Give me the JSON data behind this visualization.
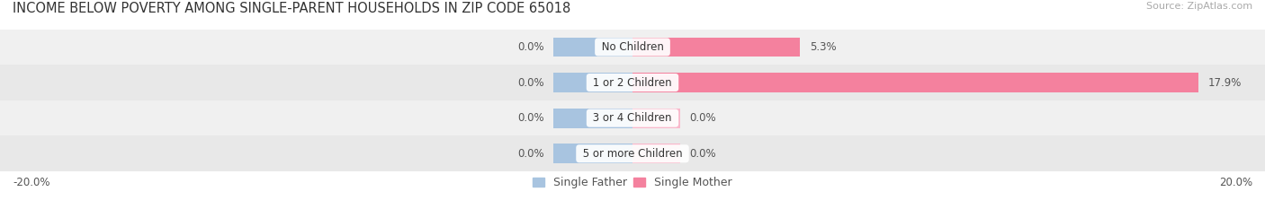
{
  "title": "INCOME BELOW POVERTY AMONG SINGLE-PARENT HOUSEHOLDS IN ZIP CODE 65018",
  "source": "Source: ZipAtlas.com",
  "categories": [
    "No Children",
    "1 or 2 Children",
    "3 or 4 Children",
    "5 or more Children"
  ],
  "single_father": [
    0.0,
    0.0,
    0.0,
    0.0
  ],
  "single_mother": [
    5.3,
    17.9,
    0.0,
    0.0
  ],
  "father_stub": [
    2.5,
    2.5,
    2.5,
    2.5
  ],
  "mother_stub": [
    1.5,
    0.0,
    1.5,
    1.5
  ],
  "xlim": [
    -20.0,
    20.0
  ],
  "father_color": "#a8c4e0",
  "mother_color": "#f4819e",
  "mother_stub_color": "#f9b8cb",
  "row_bg_colors": [
    "#f0f0f0",
    "#e8e8e8"
  ],
  "title_fontsize": 10.5,
  "source_fontsize": 8,
  "label_fontsize": 8.5,
  "category_fontsize": 8.5,
  "legend_fontsize": 9,
  "bar_height": 0.55
}
